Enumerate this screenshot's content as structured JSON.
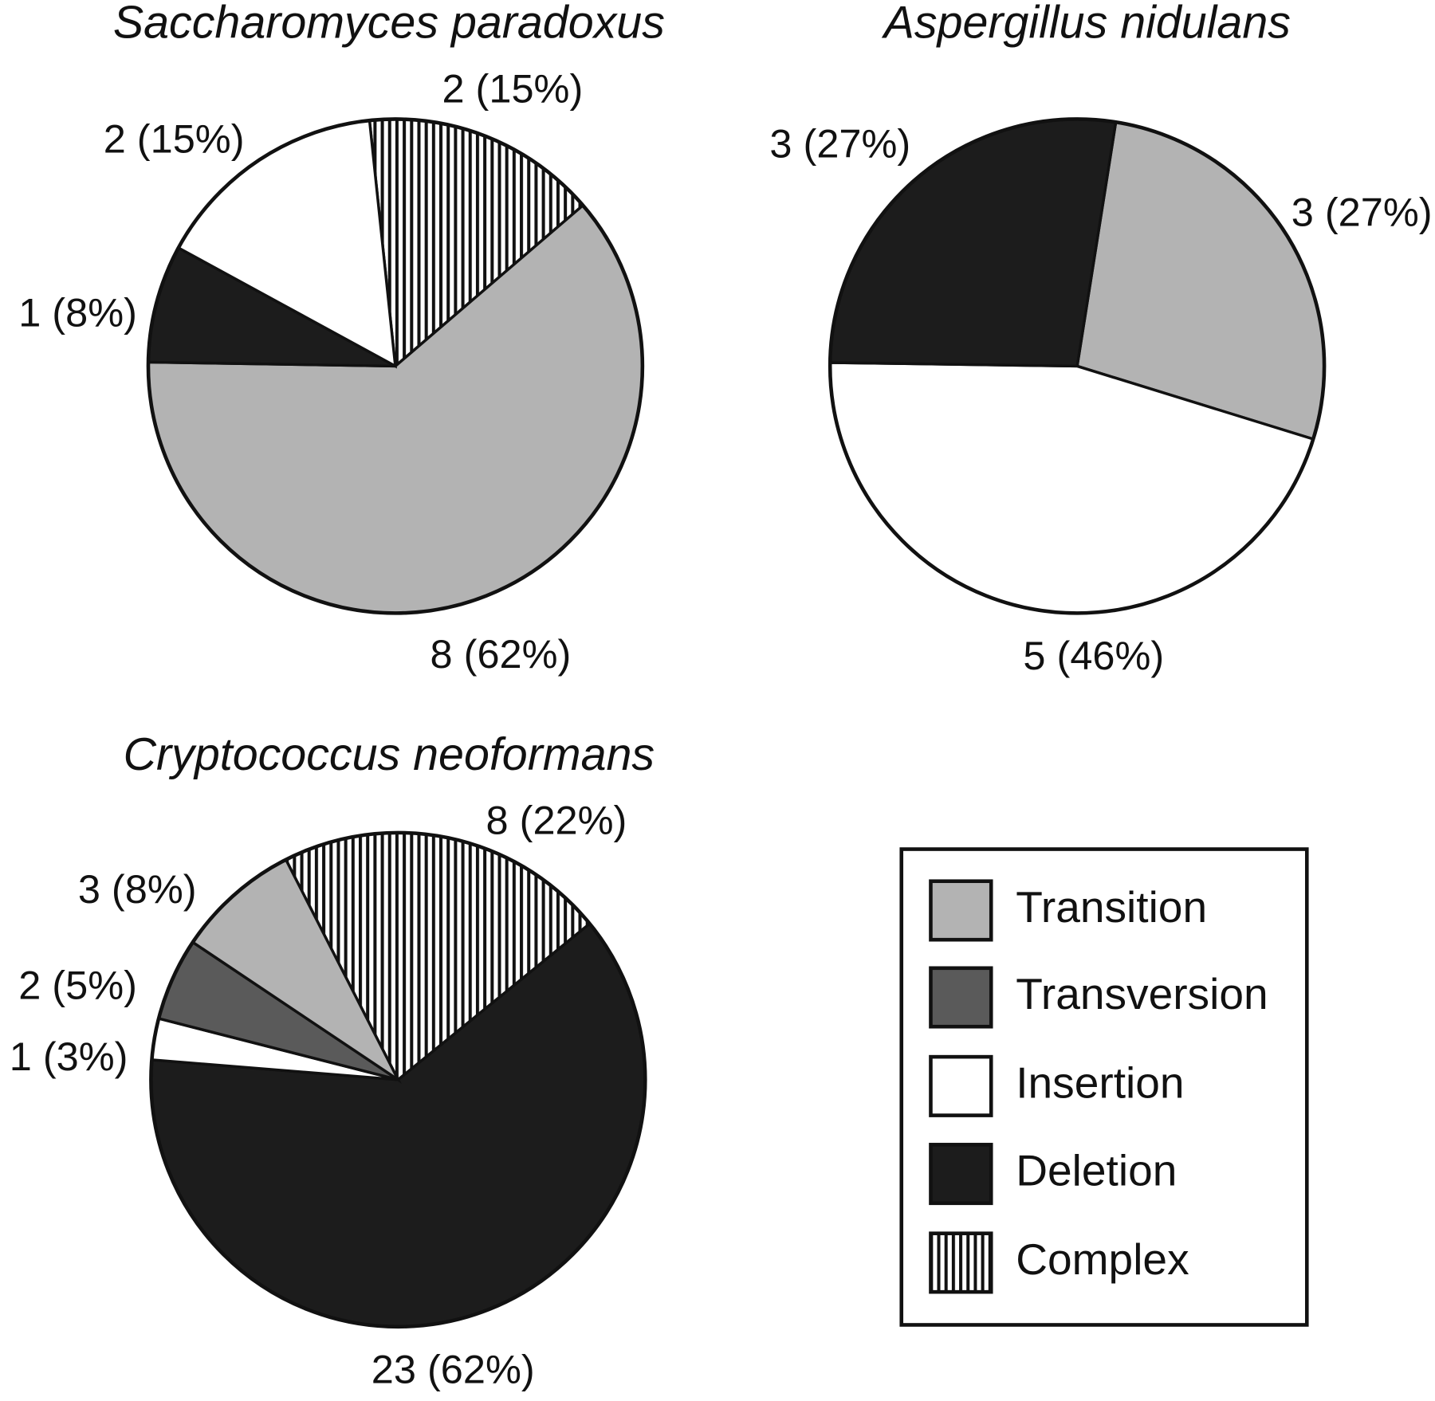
{
  "chart_data": [
    {
      "type": "pie",
      "title": "Saccharomyces paradoxus",
      "values": [
        2,
        8,
        1,
        2
      ],
      "value_labels": [
        "2 (15%)",
        "8 (62%)",
        "1 (8%)",
        "2 (15%)"
      ],
      "colors": [
        "hatch",
        "#b3b3b3",
        "#1c1c1c",
        "#ffffff"
      ]
    },
    {
      "type": "pie",
      "title": "Aspergillus nidulans",
      "values": [
        3,
        5,
        3
      ],
      "value_labels": [
        "3 (27%)",
        "5 (46%)",
        "3 (27%)"
      ],
      "colors": [
        "#b3b3b3",
        "#ffffff",
        "#1c1c1c"
      ]
    },
    {
      "type": "pie",
      "title": "Cryptococcus neoformans",
      "values": [
        8,
        23,
        1,
        2,
        3
      ],
      "value_labels": [
        "8 (22%)",
        "23 (62%)",
        "1 (3%)",
        "2 (5%)",
        "3 (8%)"
      ],
      "colors": [
        "hatch",
        "#1c1c1c",
        "#ffffff",
        "#5a5a5a",
        "#b3b3b3"
      ]
    }
  ],
  "legend": {
    "labels": [
      "Transition",
      "Transversion",
      "Insertion",
      "Deletion",
      "Complex"
    ],
    "colors": [
      "#b3b3b3",
      "#5a5a5a",
      "#ffffff",
      "#1c1c1c",
      "hatch"
    ]
  }
}
